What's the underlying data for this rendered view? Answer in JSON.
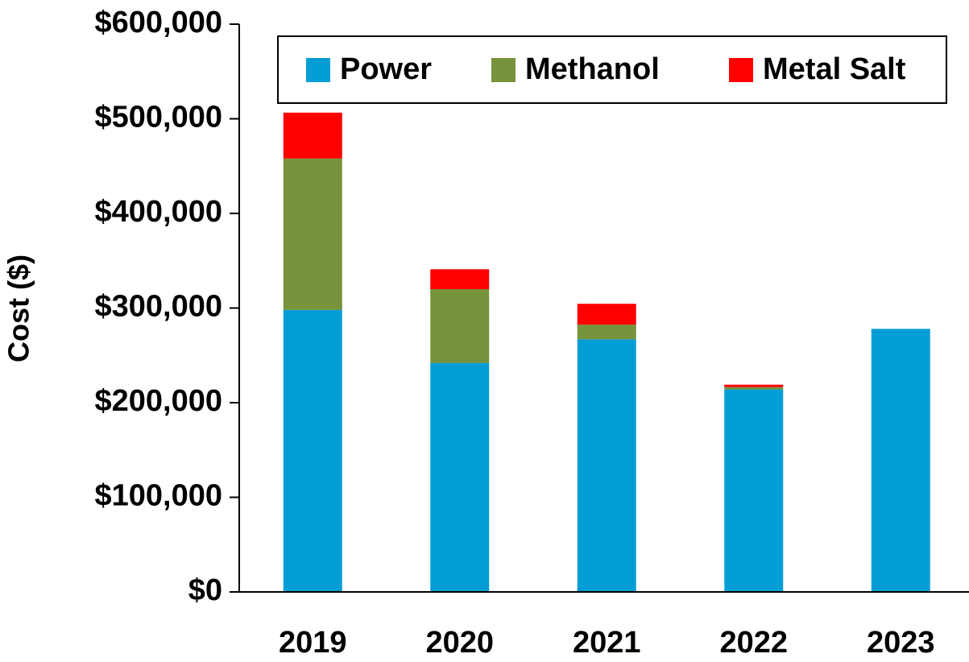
{
  "chart_data": {
    "type": "stacked_bar",
    "ylabel": "Cost ($)",
    "categories": [
      "2019",
      "2020",
      "2021",
      "2022",
      "2023"
    ],
    "series": [
      {
        "name": "Power",
        "color": "#029dd5",
        "values": [
          298000,
          242000,
          267000,
          214000,
          278000
        ]
      },
      {
        "name": "Methanol",
        "color": "#77933c",
        "values": [
          160000,
          78000,
          15500,
          2500,
          0
        ]
      },
      {
        "name": "Metal Salt",
        "color": "#ff0000",
        "values": [
          48500,
          21000,
          22000,
          2500,
          0
        ]
      }
    ],
    "ylim": [
      0,
      600000
    ],
    "yticks": [
      {
        "value": 0,
        "label": "$0"
      },
      {
        "value": 100000,
        "label": "$100,000"
      },
      {
        "value": 200000,
        "label": "$200,000"
      },
      {
        "value": 300000,
        "label": "$300,000"
      },
      {
        "value": 400000,
        "label": "$400,000"
      },
      {
        "value": 500000,
        "label": "$500,000"
      },
      {
        "value": 600000,
        "label": "$600,000"
      }
    ],
    "grid": false,
    "legend": "top"
  }
}
